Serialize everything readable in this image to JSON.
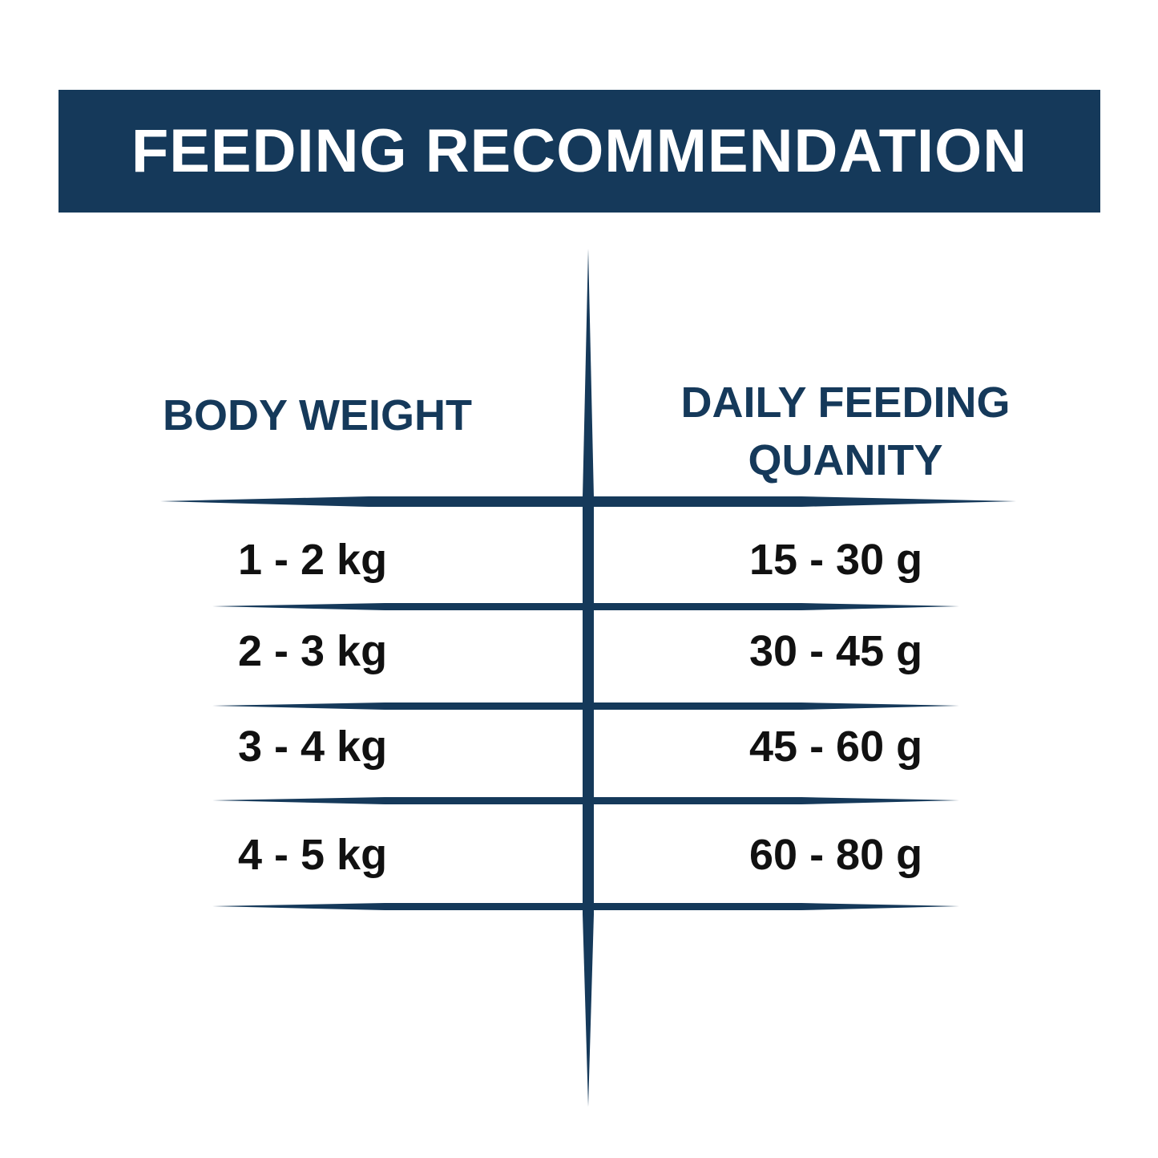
{
  "title": "FEEDING RECOMMENDATION",
  "colors": {
    "brand": "#15395a",
    "text": "#111111",
    "background": "#ffffff"
  },
  "table": {
    "headers": [
      "BODY WEIGHT",
      "DAILY FEEDING QUANITY"
    ],
    "header_right_lines": [
      "DAILY FEEDING",
      "QUANITY"
    ],
    "rows": [
      {
        "weight": "1 - 2 kg",
        "quantity": "15 - 30 g"
      },
      {
        "weight": "2 - 3 kg",
        "quantity": "30 - 45 g"
      },
      {
        "weight": "3 - 4 kg",
        "quantity": "45 - 60 g"
      },
      {
        "weight": "4 - 5 kg",
        "quantity": "60 - 80 g"
      }
    ]
  }
}
